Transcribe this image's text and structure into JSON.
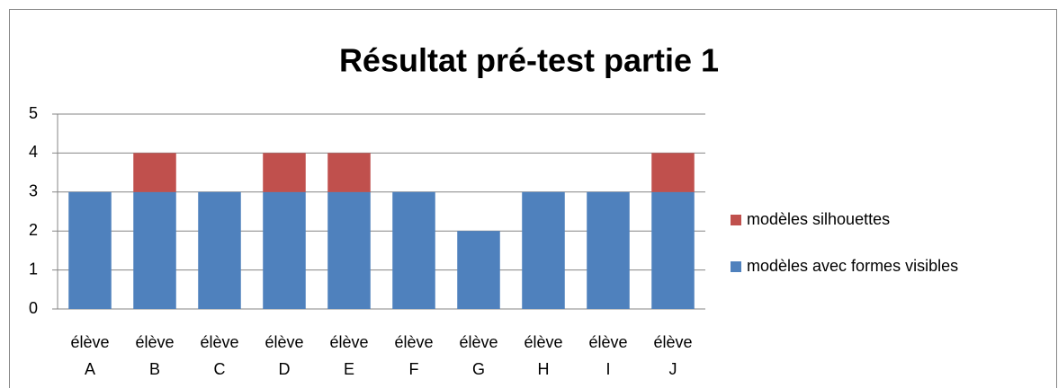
{
  "chart_data": {
    "type": "bar",
    "stacked": true,
    "title": "Résultat pré-test partie 1",
    "categories": [
      "élève A",
      "élève B",
      "élève C",
      "élève D",
      "élève E",
      "élève F",
      "élève G",
      "élève H",
      "élève I",
      "élève J"
    ],
    "series": [
      {
        "name": "modèles avec formes visibles",
        "color": "#4f81bd",
        "values": [
          3,
          3,
          3,
          3,
          3,
          3,
          2,
          3,
          3,
          3
        ]
      },
      {
        "name": "modèles silhouettes",
        "color": "#c0504d",
        "values": [
          0,
          1,
          0,
          1,
          1,
          0,
          0,
          0,
          0,
          1
        ]
      }
    ],
    "ylim": [
      0,
      5
    ],
    "yticks": [
      0,
      1,
      2,
      3,
      4,
      5
    ],
    "grid": true,
    "legend": "right"
  }
}
